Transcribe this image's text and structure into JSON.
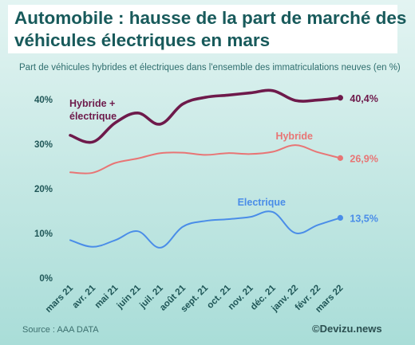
{
  "title_lines": [
    "Automobile : hausse de la part de marché des",
    "véhicules électriques en mars"
  ],
  "subtitle": "Part de véhicules hybrides et électriques dans l'ensemble des immatriculations neuves (en %)",
  "source": "Source : AAA DATA",
  "brand": "©Devizu.news",
  "chart_data": {
    "type": "line",
    "categories": [
      "mars 21",
      "avr. 21",
      "mai 21",
      "juin 21",
      "juil. 21",
      "août 21",
      "sept. 21",
      "oct. 21",
      "nov. 21",
      "déc. 21",
      "janv. 22",
      "févr. 22",
      "mars 22"
    ],
    "y_tick_labels": [
      "0%",
      "10%",
      "20%",
      "30%",
      "40%"
    ],
    "ylim": [
      0,
      42
    ],
    "grid": false,
    "series": [
      {
        "name_lines": [
          "Hybride +",
          "électrique"
        ],
        "color": "#6e1a4b",
        "values": [
          32.0,
          30.5,
          34.8,
          37.0,
          34.5,
          39.0,
          40.5,
          41.0,
          41.5,
          42.0,
          39.8,
          39.9,
          40.4
        ],
        "end_label": "40,4%"
      },
      {
        "name_lines": [
          "Hybride"
        ],
        "color": "#e87575",
        "values": [
          23.7,
          23.6,
          25.8,
          26.8,
          28.0,
          28.1,
          27.6,
          28.0,
          27.8,
          28.3,
          29.8,
          28.2,
          26.9
        ],
        "end_label": "26,9%"
      },
      {
        "name_lines": [
          "Electrique"
        ],
        "color": "#4a8de8",
        "values": [
          8.5,
          7.0,
          8.5,
          10.5,
          6.8,
          11.5,
          12.8,
          13.2,
          13.7,
          14.8,
          10.1,
          11.9,
          13.5
        ],
        "end_label": "13,5%"
      }
    ]
  }
}
